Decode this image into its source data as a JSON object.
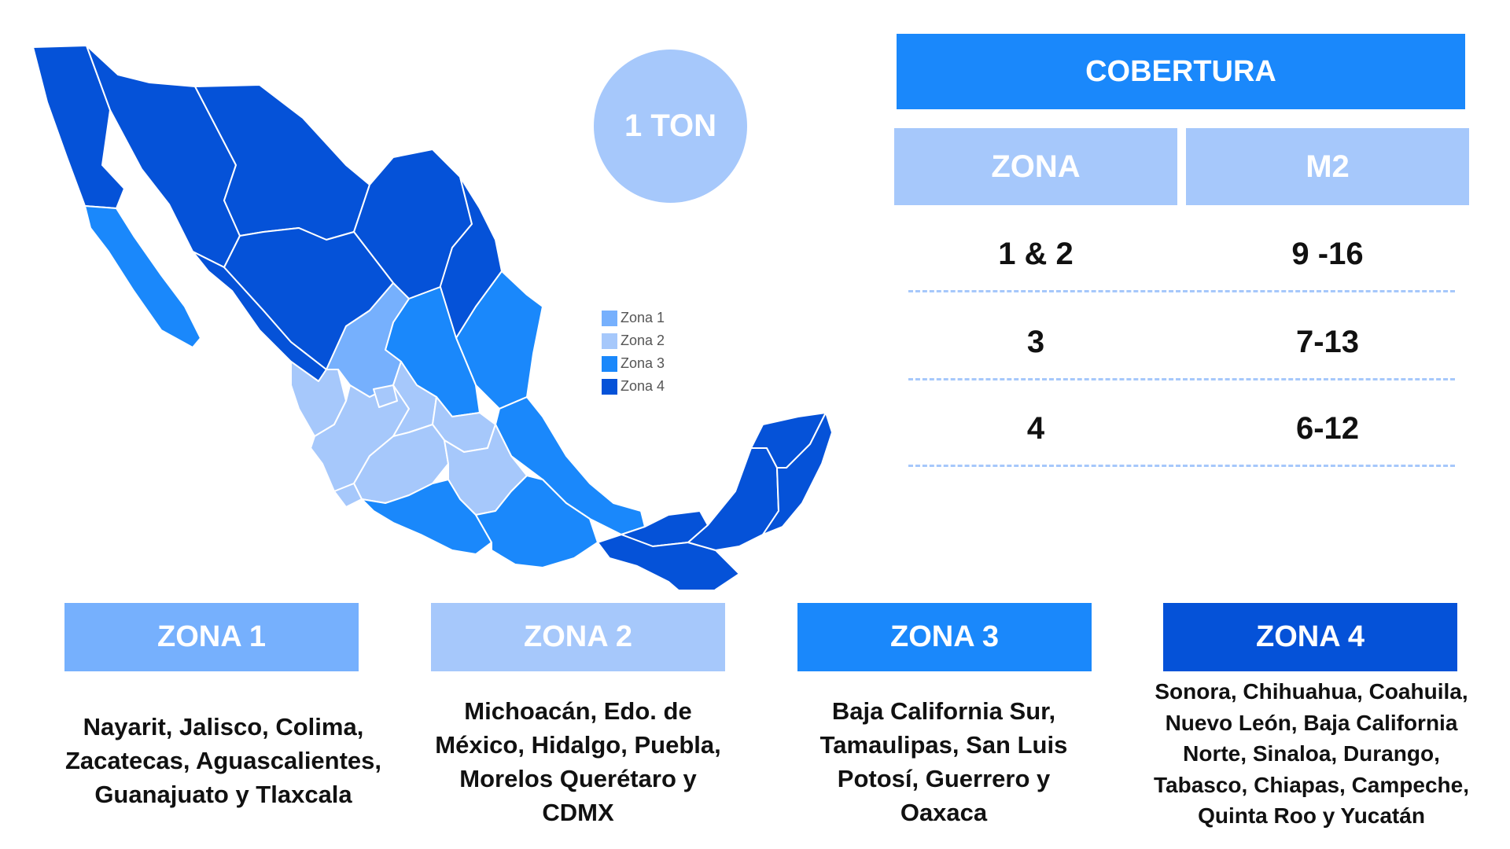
{
  "badge": {
    "label": "1 TON"
  },
  "legend": {
    "items": [
      {
        "label": "Zona 1",
        "color": "#76b0fd"
      },
      {
        "label": "Zona 2",
        "color": "#a6c8fb"
      },
      {
        "label": "Zona 3",
        "color": "#1a88fb"
      },
      {
        "label": "Zona 4",
        "color": "#0552d8"
      }
    ]
  },
  "coverage": {
    "title": "COBERTURA",
    "headers": [
      "ZONA",
      "M2"
    ],
    "rows": [
      {
        "zona": "1 & 2",
        "m2": "9 -16"
      },
      {
        "zona": "3",
        "m2": "7-13"
      },
      {
        "zona": "4",
        "m2": "6-12"
      }
    ]
  },
  "zones": [
    {
      "name": "ZONA 1",
      "color": "#76b0fd",
      "states": "Nayarit, Jalisco, Colima, Zacatecas, Aguascalientes, Guanajuato y Tlaxcala"
    },
    {
      "name": "ZONA 2",
      "color": "#a6c8fb",
      "states": "Michoacán, Edo. de México, Hidalgo, Puebla, Morelos Querétaro y CDMX"
    },
    {
      "name": "ZONA 3",
      "color": "#1a88fb",
      "states": "Baja California Sur, Tamaulipas, San Luis Potosí, Guerrero y Oaxaca"
    },
    {
      "name": "ZONA 4",
      "color": "#0552d8",
      "states": "Sonora, Chihuahua, Coahuila, Nuevo León, Baja California Norte, Sinaloa, Durango, Tabasco, Chiapas, Campeche, Quinta Roo y Yucatán"
    }
  ]
}
